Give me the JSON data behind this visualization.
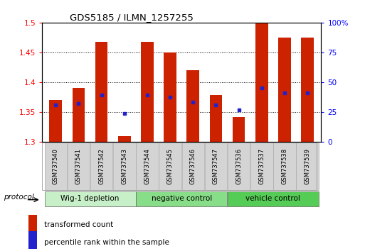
{
  "title": "GDS5185 / ILMN_1257255",
  "samples": [
    "GSM737540",
    "GSM737541",
    "GSM737542",
    "GSM737543",
    "GSM737544",
    "GSM737545",
    "GSM737546",
    "GSM737547",
    "GSM737536",
    "GSM737537",
    "GSM737538",
    "GSM737539"
  ],
  "bar_bottoms": [
    1.3,
    1.3,
    1.3,
    1.3,
    1.3,
    1.3,
    1.3,
    1.3,
    1.3,
    1.3,
    1.3,
    1.3
  ],
  "bar_tops": [
    1.37,
    1.39,
    1.468,
    1.31,
    1.468,
    1.45,
    1.42,
    1.378,
    1.342,
    1.5,
    1.475,
    1.475
  ],
  "blue_marks": [
    1.362,
    1.364,
    1.378,
    1.348,
    1.378,
    1.375,
    1.367,
    1.362,
    1.353,
    1.39,
    1.382,
    1.382
  ],
  "ylim_left": [
    1.3,
    1.5
  ],
  "ylim_right": [
    0,
    100
  ],
  "yticks_left": [
    1.3,
    1.35,
    1.4,
    1.45,
    1.5
  ],
  "yticks_right": [
    0,
    25,
    50,
    75,
    100
  ],
  "ytick_labels_left": [
    "1.3",
    "1.35",
    "1.4",
    "1.45",
    "1.5"
  ],
  "ytick_labels_right": [
    "0",
    "25",
    "50",
    "75",
    "100%"
  ],
  "bar_color": "#cc2200",
  "blue_color": "#2222cc",
  "groups": [
    {
      "label": "Wig-1 depletion",
      "start": 0,
      "end": 4,
      "color": "#c8f0c8"
    },
    {
      "label": "negative control",
      "start": 4,
      "end": 8,
      "color": "#88dd88"
    },
    {
      "label": "vehicle control",
      "start": 8,
      "end": 12,
      "color": "#55cc55"
    }
  ],
  "protocol_label": "protocol",
  "legend_red": "transformed count",
  "legend_blue": "percentile rank within the sample"
}
